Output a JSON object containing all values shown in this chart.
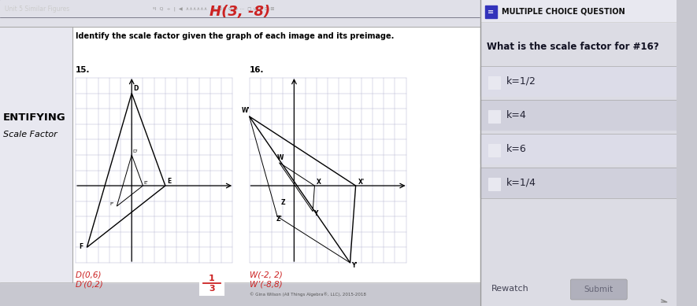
{
  "bg_color": "#c8c8d0",
  "right_panel_bg": "#dcdce4",
  "left_panel_bg": "#c8c8d0",
  "white_content_bg": "#f0f0f4",
  "toolbar_bg": "#1a1a2e",
  "toolbar_text": "Unit 5 Similar Figures",
  "toolbar_text_color": "#cccccc",
  "h_annotation": "H(3, -8)",
  "instruction_text": "Identify the scale factor given the graph of each image and its preimage.",
  "prob15_label": "15.",
  "prob16_label": "16.",
  "left_sidebar_line1": "ENTIFYING",
  "left_sidebar_line2": "Scale Factor",
  "prob15_note1": "D(0,6) ",
  "prob15_note2": "D’(0,2)",
  "prob16_note1": "W(-2, 2) ",
  "prob16_note2": "W’(-8,8)",
  "copyright": "© Gina Wilson (All Things Algebra®, LLC), 2015-2018",
  "red_color": "#cc2222",
  "graph_grid_color": "#aaaacc",
  "graph_border_color": "#888888",
  "header_icon_bg": "#3333bb",
  "header_text": "MULTIPLE CHOICE QUESTION",
  "question_text": "What is the scale factor for #16?",
  "choices": [
    "k=1/2",
    "k=4",
    "k=6",
    "k=1/4"
  ],
  "choice_row_bg1": "#dcdce8",
  "choice_row_bg2": "#d0d0dc",
  "checkbox_bg": "#e8e8f0",
  "choice_text_color": "#222233",
  "rewatch_text": "Rewatch",
  "submit_text": "Submit",
  "submit_bg": "#b0b0bc",
  "divider_color": "#aaaaaa"
}
